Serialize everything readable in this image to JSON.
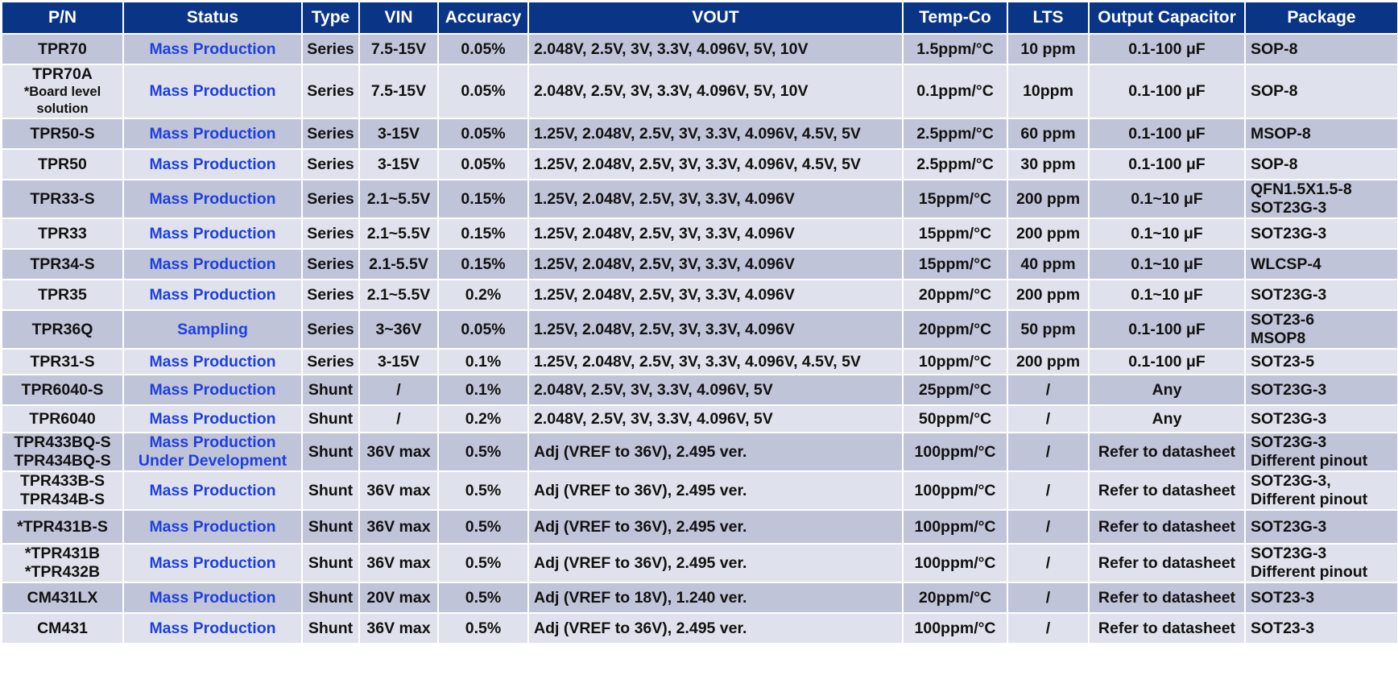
{
  "headers": [
    "P/N",
    "Status",
    "Type",
    "VIN",
    "Accuracy",
    "VOUT",
    "Temp-Co",
    "LTS",
    "Output Capacitor",
    "Package"
  ],
  "rows": [
    {
      "pn": [
        "TPR70"
      ],
      "status": [
        "Mass Production"
      ],
      "type": "Series",
      "vin": "7.5-15V",
      "acc": "0.05%",
      "vout": "2.048V, 2.5V, 3V, 3.3V, 4.096V, 5V, 10V",
      "tc": "1.5ppm/°C",
      "lts": "10 ppm",
      "cap": "0.1-100 μF",
      "pkg": [
        "SOP-8"
      ]
    },
    {
      "pn": [
        "TPR70A",
        "*Board level",
        "solution"
      ],
      "status": [
        "Mass Production"
      ],
      "type": "Series",
      "vin": "7.5-15V",
      "acc": "0.05%",
      "vout": "2.048V, 2.5V, 3V, 3.3V, 4.096V, 5V, 10V",
      "tc": "0.1ppm/°C",
      "lts": "10ppm",
      "cap": "0.1-100 μF",
      "pkg": [
        "SOP-8"
      ]
    },
    {
      "pn": [
        "TPR50-S"
      ],
      "status": [
        "Mass Production"
      ],
      "type": "Series",
      "vin": "3-15V",
      "acc": "0.05%",
      "vout": "1.25V, 2.048V, 2.5V, 3V, 3.3V, 4.096V, 4.5V, 5V",
      "tc": "2.5ppm/°C",
      "lts": "60 ppm",
      "cap": "0.1-100 μF",
      "pkg": [
        "MSOP-8"
      ]
    },
    {
      "pn": [
        "TPR50"
      ],
      "status": [
        "Mass Production"
      ],
      "type": "Series",
      "vin": "3-15V",
      "acc": "0.05%",
      "vout": "1.25V, 2.048V, 2.5V, 3V, 3.3V, 4.096V, 4.5V, 5V",
      "tc": "2.5ppm/°C",
      "lts": "30 ppm",
      "cap": "0.1-100 μF",
      "pkg": [
        "SOP-8"
      ]
    },
    {
      "pn": [
        "TPR33-S"
      ],
      "status": [
        "Mass Production"
      ],
      "type": "Series",
      "vin": "2.1~5.5V",
      "acc": "0.15%",
      "vout": "1.25V, 2.048V, 2.5V, 3V, 3.3V, 4.096V",
      "tc": "15ppm/°C",
      "lts": "200 ppm",
      "cap": "0.1~10 μF",
      "pkg": [
        "QFN1.5X1.5-8",
        "SOT23G-3"
      ]
    },
    {
      "pn": [
        "TPR33"
      ],
      "status": [
        "Mass Production"
      ],
      "type": "Series",
      "vin": "2.1~5.5V",
      "acc": "0.15%",
      "vout": "1.25V, 2.048V, 2.5V, 3V, 3.3V, 4.096V",
      "tc": "15ppm/°C",
      "lts": "200 ppm",
      "cap": "0.1~10 μF",
      "pkg": [
        "SOT23G-3"
      ]
    },
    {
      "pn": [
        "TPR34-S"
      ],
      "status": [
        "Mass Production"
      ],
      "type": "Series",
      "vin": "2.1-5.5V",
      "acc": "0.15%",
      "vout": "1.25V, 2.048V, 2.5V, 3V, 3.3V, 4.096V",
      "tc": "15ppm/°C",
      "lts": "40 ppm",
      "cap": "0.1~10 μF",
      "pkg": [
        "WLCSP-4"
      ]
    },
    {
      "pn": [
        "TPR35"
      ],
      "status": [
        "Mass Production"
      ],
      "type": "Series",
      "vin": "2.1~5.5V",
      "acc": "0.2%",
      "vout": "1.25V, 2.048V, 2.5V, 3V, 3.3V, 4.096V",
      "tc": "20ppm/°C",
      "lts": "200 ppm",
      "cap": "0.1~10 μF",
      "pkg": [
        "SOT23G-3"
      ]
    },
    {
      "pn": [
        "TPR36Q"
      ],
      "status": [
        "Sampling"
      ],
      "type": "Series",
      "vin": "3~36V",
      "acc": "0.05%",
      "vout": "1.25V, 2.048V, 2.5V, 3V, 3.3V, 4.096V",
      "tc": "20ppm/°C",
      "lts": "50 ppm",
      "cap": "0.1-100 μF",
      "pkg": [
        "SOT23-6",
        "MSOP8"
      ]
    },
    {
      "pn": [
        "TPR31-S"
      ],
      "status": [
        "Mass Production"
      ],
      "type": "Series",
      "vin": "3-15V",
      "acc": "0.1%",
      "vout": "1.25V, 2.048V, 2.5V, 3V, 3.3V, 4.096V, 4.5V, 5V",
      "tc": "10ppm/°C",
      "lts": "200 ppm",
      "cap": "0.1-100 μF",
      "pkg": [
        "SOT23-5"
      ]
    },
    {
      "pn": [
        "TPR6040-S"
      ],
      "status": [
        "Mass Production"
      ],
      "type": "Shunt",
      "vin": "/",
      "acc": "0.1%",
      "vout": "2.048V, 2.5V, 3V, 3.3V, 4.096V, 5V",
      "tc": "25ppm/°C",
      "lts": "/",
      "cap": "Any",
      "pkg": [
        "SOT23G-3"
      ]
    },
    {
      "pn": [
        "TPR6040"
      ],
      "status": [
        "Mass Production"
      ],
      "type": "Shunt",
      "vin": "/",
      "acc": "0.2%",
      "vout": "2.048V, 2.5V, 3V, 3.3V, 4.096V, 5V",
      "tc": "50ppm/°C",
      "lts": "/",
      "cap": "Any",
      "pkg": [
        "SOT23G-3"
      ]
    },
    {
      "pn": [
        "TPR433BQ-S",
        "TPR434BQ-S"
      ],
      "status": [
        "Mass Production",
        "Under Development"
      ],
      "type": "Shunt",
      "vin": "36V max",
      "acc": "0.5%",
      "vout": "Adj (VREF to 36V), 2.495 ver.",
      "tc": "100ppm/°C",
      "lts": "/",
      "cap": "Refer to datasheet",
      "pkg": [
        "SOT23G-3",
        "Different pinout"
      ]
    },
    {
      "pn": [
        "TPR433B-S",
        "TPR434B-S"
      ],
      "status": [
        "Mass Production"
      ],
      "type": "Shunt",
      "vin": "36V max",
      "acc": "0.5%",
      "vout": "Adj (VREF to 36V), 2.495 ver.",
      "tc": "100ppm/°C",
      "lts": "/",
      "cap": "Refer to datasheet",
      "pkg": [
        "SOT23G-3,",
        "Different pinout"
      ]
    },
    {
      "pn": [
        "*TPR431B-S"
      ],
      "status": [
        "Mass Production"
      ],
      "type": "Shunt",
      "vin": "36V max",
      "acc": "0.5%",
      "vout": "Adj (VREF to 36V), 2.495 ver.",
      "tc": "100ppm/°C",
      "lts": "/",
      "cap": "Refer to datasheet",
      "pkg": [
        "SOT23G-3"
      ]
    },
    {
      "pn": [
        "*TPR431B",
        "*TPR432B"
      ],
      "status": [
        "Mass Production"
      ],
      "type": "Shunt",
      "vin": "36V max",
      "acc": "0.5%",
      "vout": "Adj (VREF to 36V), 2.495 ver.",
      "tc": "100ppm/°C",
      "lts": "/",
      "cap": "Refer to datasheet",
      "pkg": [
        "SOT23G-3",
        "Different pinout"
      ]
    },
    {
      "pn": [
        "CM431LX"
      ],
      "status": [
        "Mass Production"
      ],
      "type": "Shunt",
      "vin": "20V max",
      "acc": "0.5%",
      "vout": "Adj (VREF to 18V), 1.240 ver.",
      "tc": "20ppm/°C",
      "lts": "/",
      "cap": "Refer to datasheet",
      "pkg": [
        "SOT23-3"
      ]
    },
    {
      "pn": [
        "CM431"
      ],
      "status": [
        "Mass Production"
      ],
      "type": "Shunt",
      "vin": "36V max",
      "acc": "0.5%",
      "vout": "Adj (VREF to 36V), 2.495 ver.",
      "tc": "100ppm/°C",
      "lts": "/",
      "cap": "Refer to datasheet",
      "pkg": [
        "SOT23-3"
      ]
    }
  ]
}
